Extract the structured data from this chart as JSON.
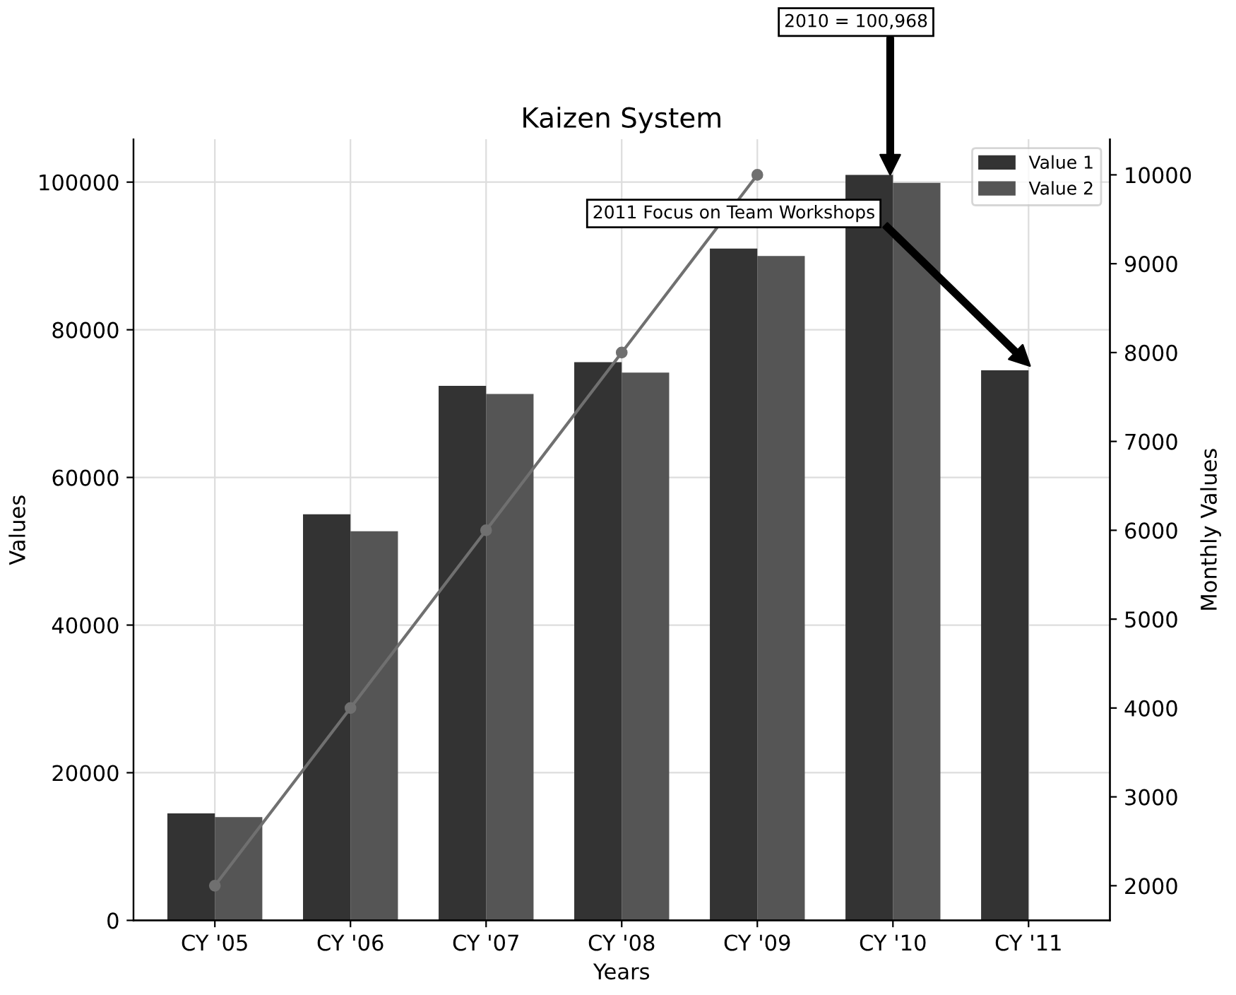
{
  "chart_data": {
    "type": "bar",
    "title": "Kaizen System",
    "xlabel": "Years",
    "ylabel": "Values",
    "y2label": "Monthly Values",
    "categories": [
      "CY '05",
      "CY '06",
      "CY '07",
      "CY '08",
      "CY '09",
      "CY '10",
      "CY '11"
    ],
    "series": [
      {
        "name": "Value 1",
        "color": "#333333",
        "values": [
          14500,
          55000,
          72400,
          75600,
          91000,
          100968,
          74500
        ]
      },
      {
        "name": "Value 2",
        "color": "#555555",
        "values": [
          14000,
          52700,
          71300,
          74200,
          90000,
          99900,
          null
        ]
      },
      {
        "type": "line",
        "axis": "y2",
        "color": "#707070",
        "marker": "circle",
        "values": [
          2000,
          4000,
          6000,
          8000,
          10000,
          null,
          null
        ]
      }
    ],
    "ylim": [
      0,
      105800
    ],
    "yticks": [
      0,
      20000,
      40000,
      60000,
      80000,
      100000
    ],
    "y2lim": [
      1610,
      10400
    ],
    "y2ticks": [
      2000,
      3000,
      4000,
      5000,
      6000,
      7000,
      8000,
      9000,
      10000
    ],
    "grid": true,
    "legend": "top right",
    "annotations": [
      "2010 = 100,968",
      "2011 Focus on Team Workshops"
    ]
  }
}
